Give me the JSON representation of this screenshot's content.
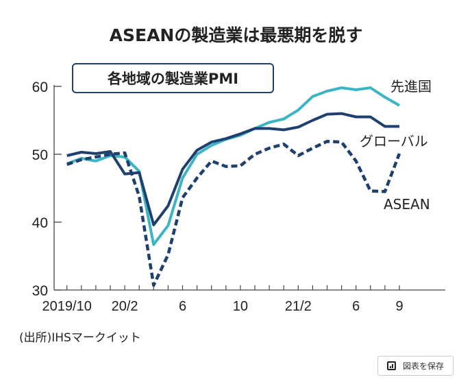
{
  "chart_data": {
    "type": "line",
    "title": "ASEANの製造業は最悪期を脱す",
    "subtitle": "各地域の製造業PMI",
    "xlabel": "",
    "ylabel": "",
    "ylim": [
      30,
      60
    ],
    "yticks": [
      30,
      40,
      50,
      60
    ],
    "x": [
      "2019/10",
      "2019/11",
      "2019/12",
      "2020/1",
      "2020/2",
      "2020/3",
      "2020/4",
      "2020/5",
      "2020/6",
      "2020/7",
      "2020/8",
      "2020/9",
      "2020/10",
      "2020/11",
      "2020/12",
      "2021/1",
      "2021/2",
      "2021/3",
      "2021/4",
      "2021/5",
      "2021/6",
      "2021/7",
      "2021/8",
      "2021/9"
    ],
    "xtick_labels": [
      {
        "index": 0,
        "label": "2019/10"
      },
      {
        "index": 4,
        "label": "20/2"
      },
      {
        "index": 8,
        "label": "6"
      },
      {
        "index": 12,
        "label": "10"
      },
      {
        "index": 16,
        "label": "21/2"
      },
      {
        "index": 20,
        "label": "6"
      },
      {
        "index": 23,
        "label": "9"
      }
    ],
    "grid": false,
    "series": [
      {
        "name": "先進国",
        "color": "#3cb4c4",
        "style": "solid",
        "values": [
          48.6,
          49.4,
          49.0,
          49.8,
          49.6,
          47.5,
          36.7,
          39.5,
          46.5,
          50.0,
          51.3,
          52.2,
          52.8,
          53.8,
          54.7,
          55.2,
          56.5,
          58.5,
          59.3,
          59.8,
          59.5,
          59.8,
          58.4,
          57.2
        ]
      },
      {
        "name": "グローバル",
        "color": "#1f3f6e",
        "style": "solid",
        "values": [
          49.8,
          50.3,
          50.1,
          50.4,
          47.1,
          47.3,
          39.6,
          42.4,
          47.8,
          50.6,
          51.8,
          52.3,
          53.0,
          53.8,
          53.8,
          53.6,
          54.0,
          55.0,
          55.9,
          56.0,
          55.5,
          55.5,
          54.1,
          54.1
        ]
      },
      {
        "name": "ASEAN",
        "color": "#1f3f6e",
        "style": "dashed",
        "values": [
          48.5,
          49.2,
          49.6,
          50.0,
          50.2,
          43.8,
          30.7,
          35.2,
          43.6,
          46.5,
          49.0,
          48.2,
          48.3,
          50.0,
          50.9,
          51.5,
          49.8,
          50.9,
          51.9,
          51.8,
          49.0,
          44.6,
          44.5,
          50.1
        ]
      }
    ],
    "source": "(出所)IHSマークイット"
  },
  "ui": {
    "save_button": "図表を保存"
  }
}
